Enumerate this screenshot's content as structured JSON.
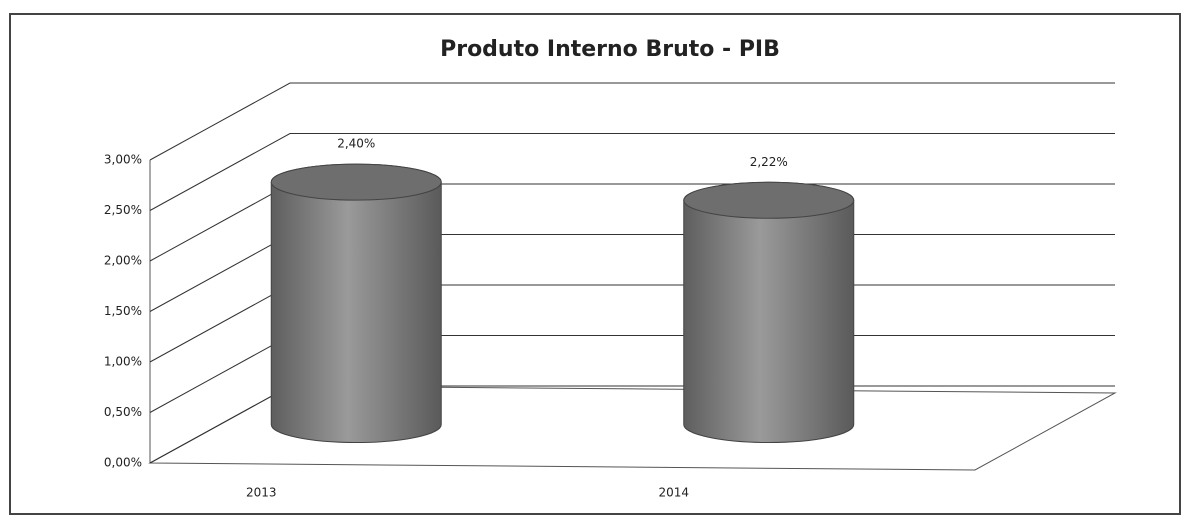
{
  "chart_data": {
    "type": "cylinder",
    "title": "Produto Interno Bruto - PIB",
    "categories": [
      "2013",
      "2014"
    ],
    "values": [
      2.4,
      2.22
    ],
    "value_labels": [
      "2,40%",
      "2,22%"
    ],
    "color": "#8a8a8a",
    "ylim": [
      0,
      3
    ],
    "yticks": [
      {
        "value": 0,
        "label": "0,00%"
      },
      {
        "value": 0.5,
        "label": "0,50%"
      },
      {
        "value": 1,
        "label": "1,00%"
      },
      {
        "value": 1.5,
        "label": "1,50%"
      },
      {
        "value": 2,
        "label": "2,00%"
      },
      {
        "value": 2.5,
        "label": "2,50%"
      },
      {
        "value": 3,
        "label": "3,00%"
      }
    ],
    "grid": true
  }
}
